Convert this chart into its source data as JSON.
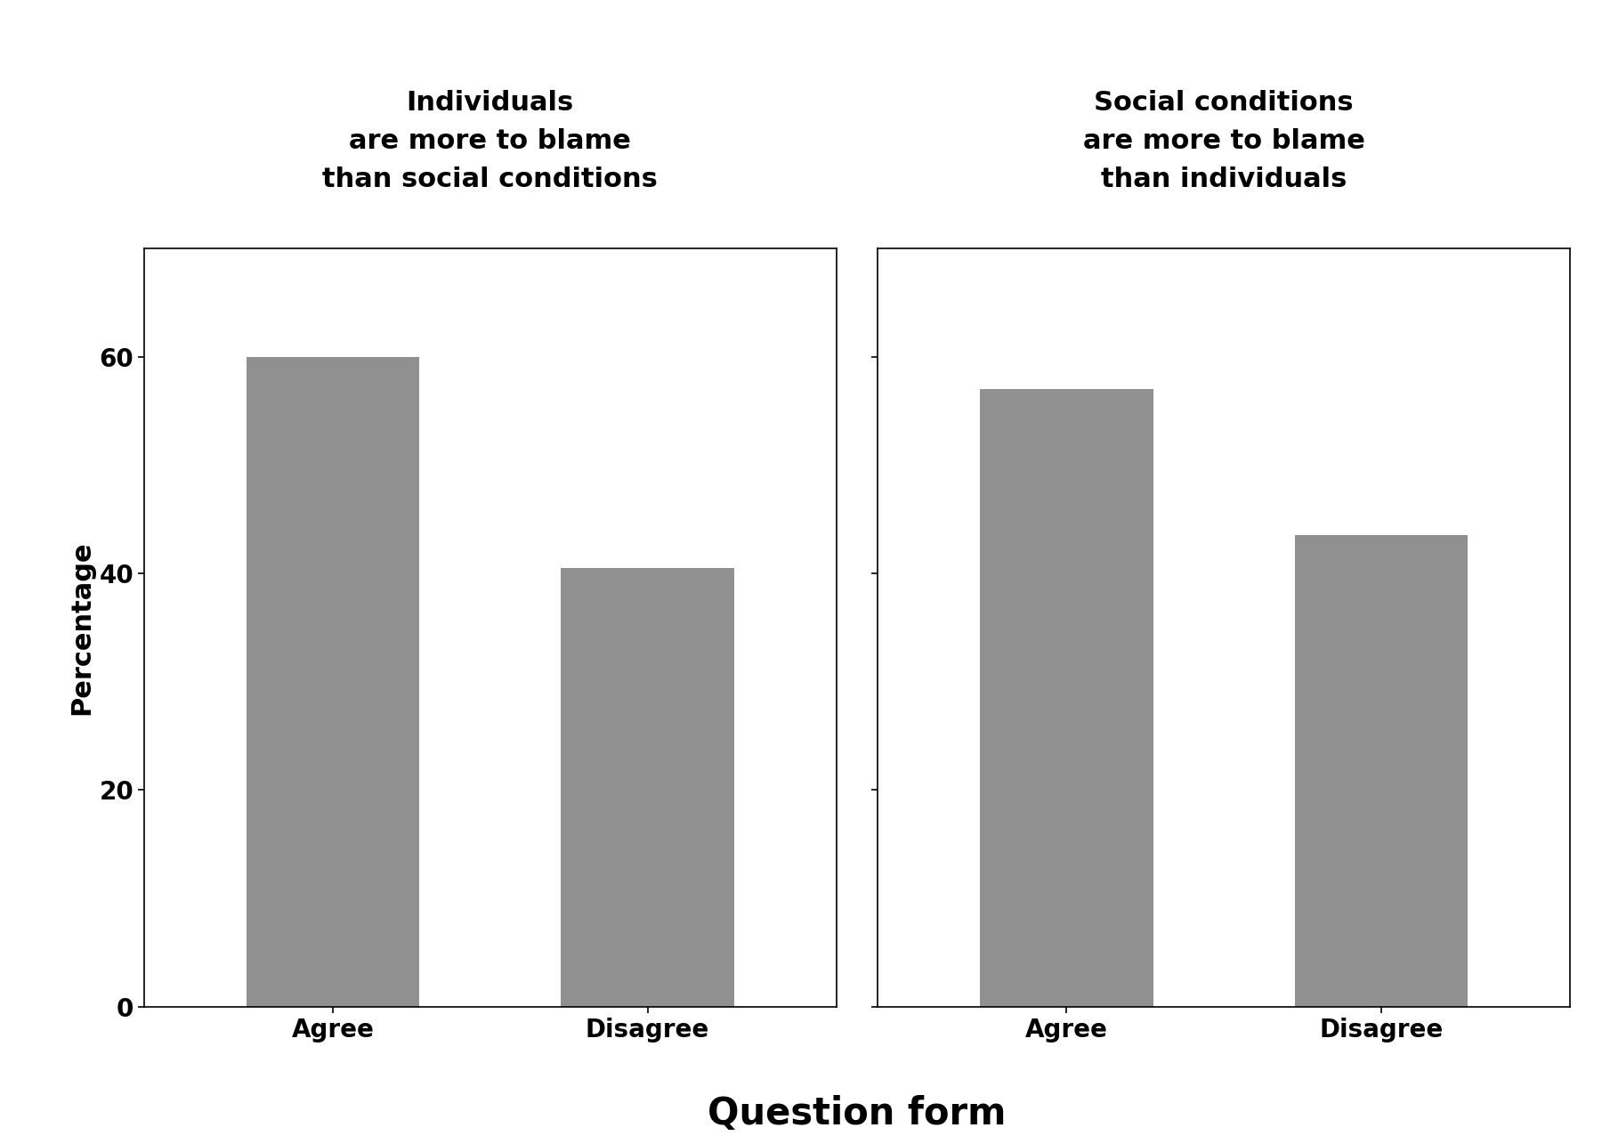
{
  "panel1_title": "Individuals\nare more to blame\nthan social conditions",
  "panel2_title": "Social conditions\nare more to blame\nthan individuals",
  "panel1_values": [
    60,
    40.5
  ],
  "panel2_values": [
    57,
    43.5
  ],
  "categories": [
    "Agree",
    "Disagree"
  ],
  "bar_color": "#909090",
  "ylabel": "Percentage",
  "xlabel": "Question form",
  "ylim": [
    0,
    70
  ],
  "yticks": [
    0,
    20,
    40,
    60
  ],
  "title_bg_color": "#cccccc",
  "panel_bg_color": "#ffffff",
  "fig_bg_color": "#ffffff",
  "bar_width": 0.55,
  "title_fontsize": 22,
  "label_fontsize": 22,
  "tick_fontsize": 20,
  "xlabel_fontsize": 30
}
